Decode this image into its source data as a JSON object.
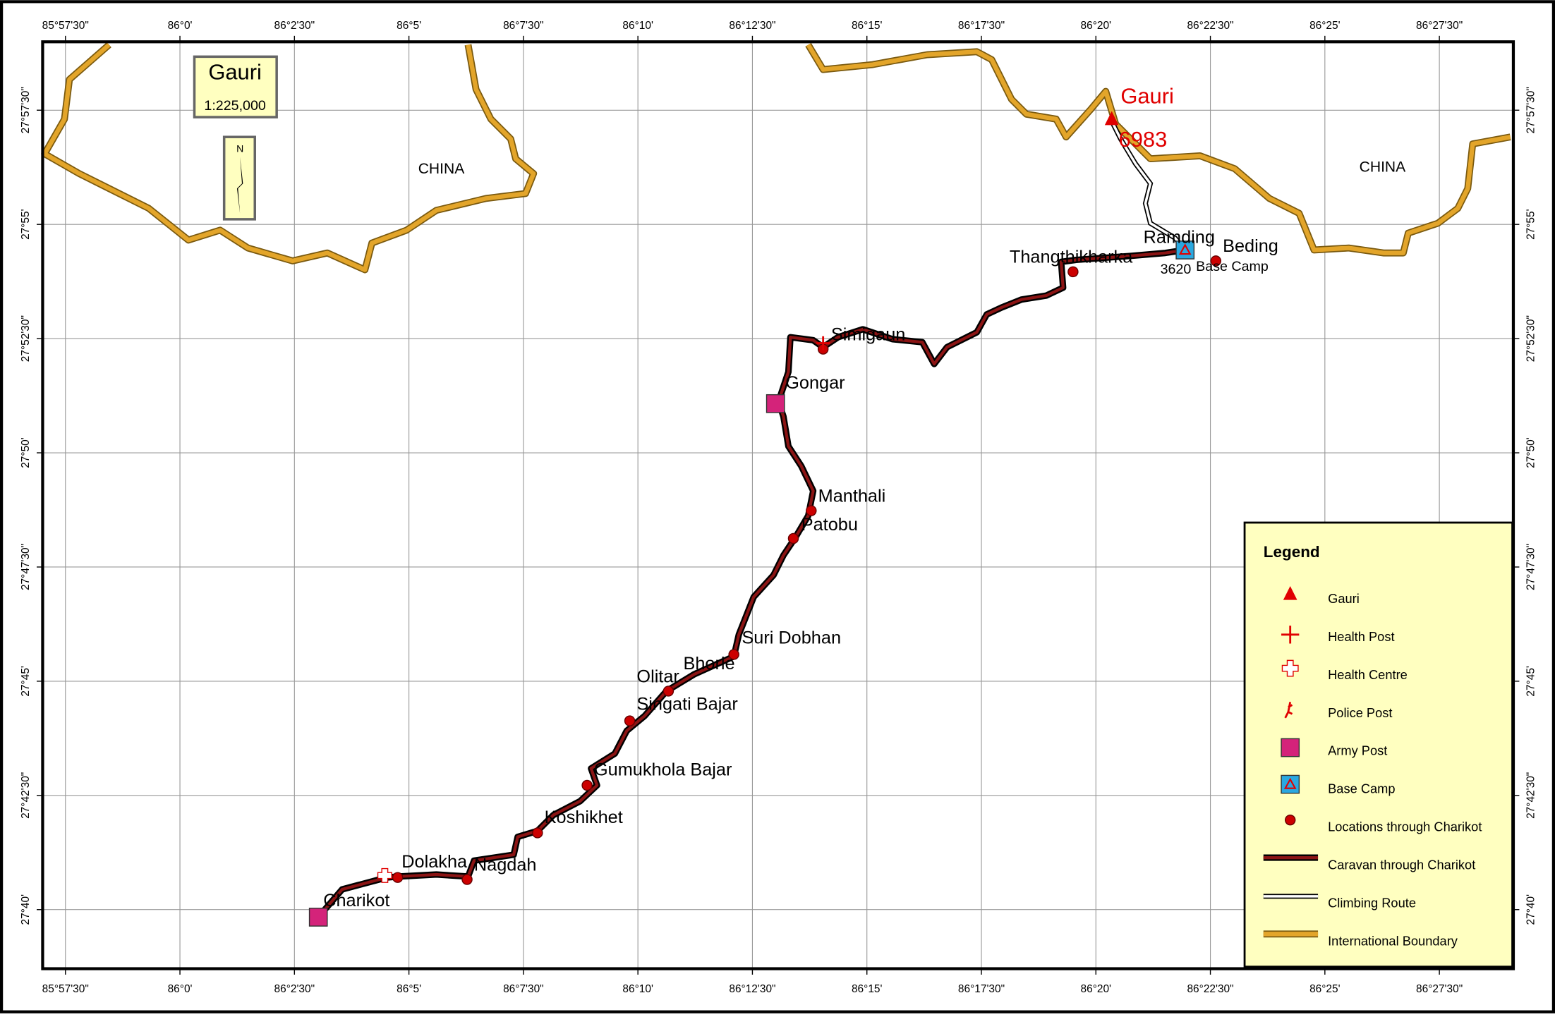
{
  "header": {
    "title": "Gauri",
    "scale": "1:225,000",
    "north": "N"
  },
  "grid": {
    "longitudes": [
      "85°57'30\"",
      "86°0'",
      "86°2'30\"",
      "86°5'",
      "86°7'30\"",
      "86°10'",
      "86°12'30\"",
      "86°15'",
      "86°17'30\"",
      "86°20'",
      "86°22'30\"",
      "86°25'",
      "86°27'30\""
    ],
    "latitudes": [
      "27°57'30\"",
      "27°55'",
      "27°52'30\"",
      "27°50'",
      "27°47'30\"",
      "27°45'",
      "27°42'30\"",
      "27°40'"
    ]
  },
  "map": {
    "regions": [
      "CHINA",
      "CHINA"
    ],
    "peak": {
      "name": "Gauri",
      "elevation": "6983"
    },
    "base_camp_elevation": "3620",
    "places": [
      "Thangthikharka",
      "Ramding",
      "Beding",
      "Base Camp",
      "Simigaun",
      "Gongar",
      "Manthali",
      "Patobu",
      "Suri Dobhan",
      "Bhorle",
      "Olitar",
      "Singati Bajar",
      "Gumukhola Bajar",
      "Koshikhet",
      "Dolakha",
      "Nagdah",
      "Charikot"
    ]
  },
  "legend": {
    "title": "Legend",
    "items": [
      "Gauri",
      "Health Post",
      "Health Centre",
      "Police Post",
      "Army Post",
      "Base Camp",
      "Locations through Charikot",
      "Caravan through Charikot",
      "Climbing Route",
      "International Boundary"
    ]
  }
}
